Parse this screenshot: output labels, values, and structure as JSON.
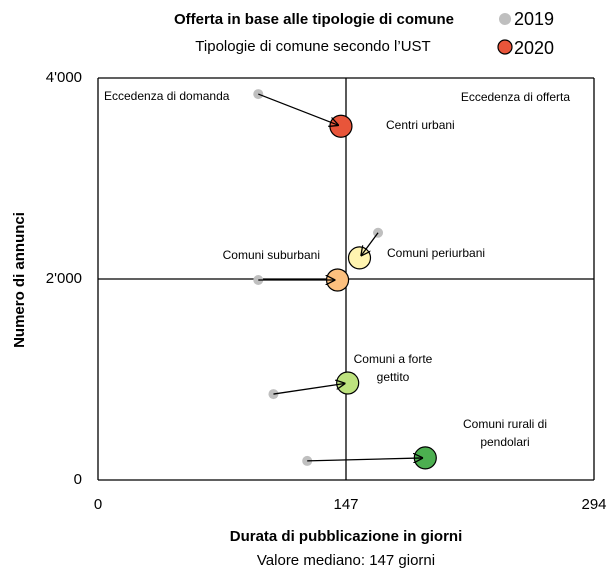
{
  "chart_data": {
    "type": "arrow-scatter",
    "title": "Offerta in base alle tipologie di comune",
    "subtitle": "Tipologie di comune secondo l’UST",
    "x_label": "Durata di pubblicazione in giorni",
    "x_sublabel": "Valore mediano: 147 giorni",
    "y_label": "Numero di annunci",
    "annotations": [
      "Eccedenza di domanda",
      "Eccedenza di offerta"
    ],
    "categories": [
      [
        "Centri urbani"
      ],
      [
        "Comuni periurbani"
      ],
      [
        "Comuni suburbani"
      ],
      [
        "Comuni a forte",
        "gettito"
      ],
      [
        "Comuni rurali di",
        "pendolari"
      ]
    ],
    "series": [
      {
        "name": "2019",
        "color": "#bfbfbf",
        "x": [
          95,
          166,
          95,
          104,
          124
        ],
        "y": [
          3840,
          2460,
          1990,
          855,
          190
        ]
      },
      {
        "name": "2020",
        "colors": [
          "#e8553a",
          "#fff4b0",
          "#fdc07e",
          "#bde27e",
          "#4caf50"
        ],
        "x": [
          144,
          155,
          142,
          148,
          194
        ],
        "y": [
          3520,
          2210,
          1990,
          965,
          220
        ]
      }
    ],
    "xlim": [
      0,
      294
    ],
    "xticks": [
      0,
      147,
      294
    ],
    "ylim": [
      0,
      4000
    ],
    "yticks": [
      {
        "value": 0,
        "label": "0"
      },
      {
        "value": 2000,
        "label": "2'000"
      },
      {
        "value": 4000,
        "label": "4'000"
      }
    ]
  }
}
